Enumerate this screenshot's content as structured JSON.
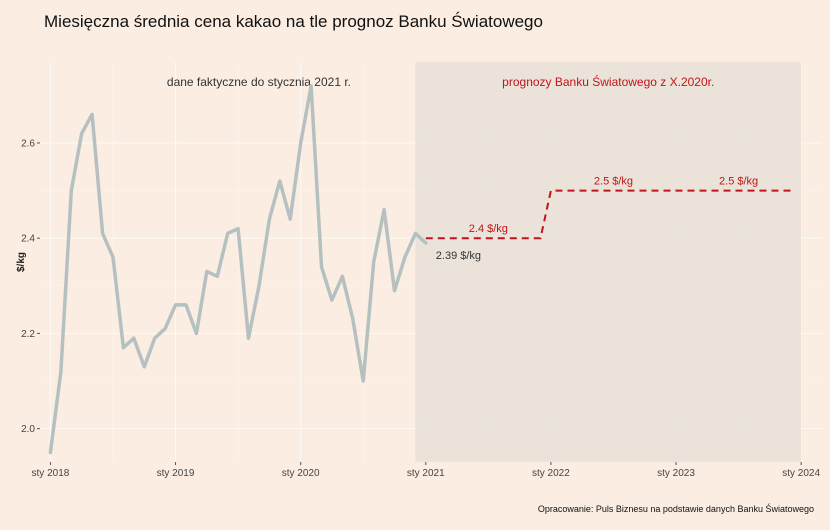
{
  "title": "Miesięczna średnia cena kakao na tle prognoz Banku Światowego",
  "caption": "Opracowanie: Puls Biznesu na podstawie danych Banku Światowego",
  "chart_data": {
    "type": "line",
    "ylabel": "$/kg",
    "ylim": [
      1.93,
      2.77
    ],
    "y_ticks": [
      2.0,
      2.2,
      2.4,
      2.6
    ],
    "y_tick_labels": [
      "2.0",
      "2.2",
      "2.4",
      "2.6"
    ],
    "x_range": [
      "2017-12",
      "2024-03"
    ],
    "x_ticks": [
      {
        "date": "2018-01",
        "label": "sty 2018"
      },
      {
        "date": "2019-01",
        "label": "sty 2019"
      },
      {
        "date": "2020-01",
        "label": "sty 2020"
      },
      {
        "date": "2021-01",
        "label": "sty 2021"
      },
      {
        "date": "2022-01",
        "label": "sty 2022"
      },
      {
        "date": "2023-01",
        "label": "sty 2023"
      },
      {
        "date": "2024-01",
        "label": "sty 2024"
      }
    ],
    "grid": true,
    "colors": {
      "actual": "#b5c1c1",
      "forecast": "#c0151a",
      "forecast_region": "#e8e0d8",
      "background": "#fbede2"
    },
    "forecast_region": {
      "start": "2020-12",
      "end": "2024-01",
      "label": "prognozy Banku Światowego z X.2020r."
    },
    "actual_label": "dane faktyczne do stycznia 2021 r.",
    "series": [
      {
        "x": [
          "2018-01",
          "2018-02",
          "2018-03",
          "2018-04",
          "2018-05",
          "2018-06",
          "2018-07",
          "2018-08",
          "2018-09",
          "2018-10",
          "2018-11",
          "2018-12",
          "2019-01",
          "2019-02",
          "2019-03",
          "2019-04",
          "2019-05",
          "2019-06",
          "2019-07",
          "2019-08",
          "2019-09",
          "2019-10",
          "2019-11",
          "2019-12",
          "2020-01",
          "2020-02",
          "2020-03",
          "2020-04",
          "2020-05",
          "2020-06",
          "2020-07",
          "2020-08",
          "2020-09",
          "2020-10",
          "2020-11",
          "2020-12",
          "2021-01"
        ],
        "values": [
          1.95,
          2.12,
          2.5,
          2.62,
          2.66,
          2.41,
          2.36,
          2.17,
          2.19,
          2.13,
          2.19,
          2.21,
          2.26,
          2.26,
          2.2,
          2.33,
          2.32,
          2.41,
          2.42,
          2.19,
          2.3,
          2.44,
          2.52,
          2.44,
          2.6,
          2.72,
          2.34,
          2.27,
          2.32,
          2.23,
          2.1,
          2.35,
          2.46,
          2.29,
          2.36,
          2.41,
          2.39
        ]
      },
      {
        "x": [
          "2021-01",
          "2021-12",
          "2022-01",
          "2023-12"
        ],
        "values": [
          2.4,
          2.4,
          2.5,
          2.5
        ],
        "style": "dashed"
      }
    ],
    "annotations": [
      {
        "text": "2.39 $/kg",
        "x": "2021-01",
        "y": 2.39
      },
      {
        "text": "2.4 $/kg",
        "x": "2021-07",
        "y": 2.4
      },
      {
        "text": "2.5 $/kg",
        "x": "2022-07",
        "y": 2.5
      },
      {
        "text": "2.5 $/kg",
        "x": "2023-07",
        "y": 2.5
      }
    ]
  }
}
